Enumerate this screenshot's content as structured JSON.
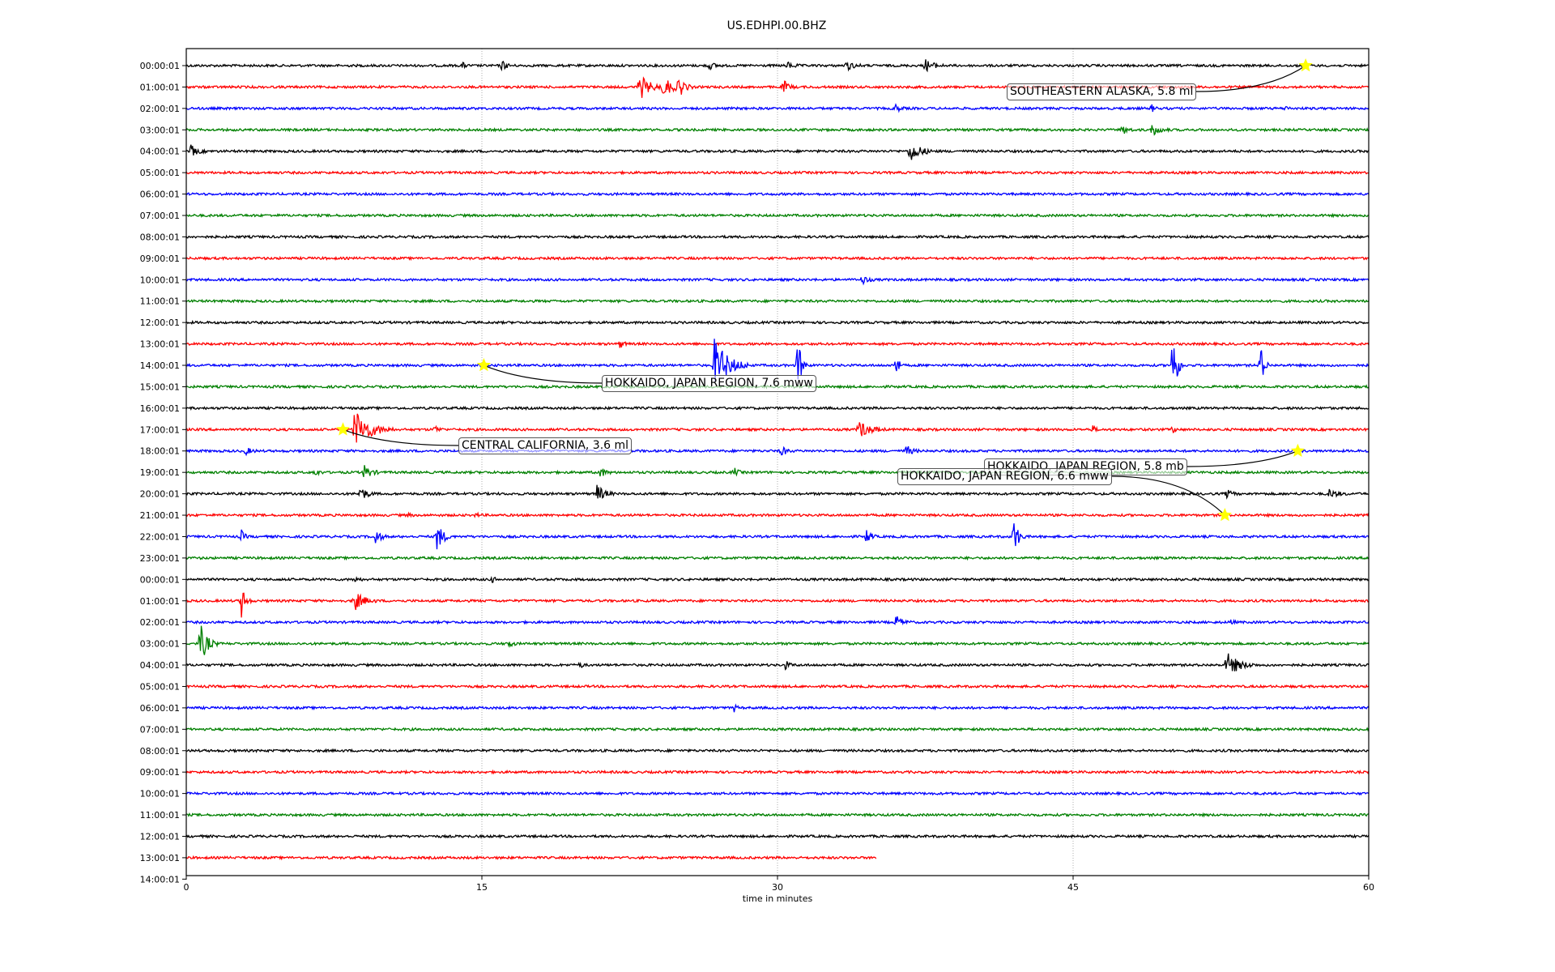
{
  "chart_data": {
    "type": "line",
    "title": "US.EDHPI.00.BHZ",
    "xlabel": "time in minutes",
    "xlim": [
      0,
      60
    ],
    "xticks": [
      "0",
      "15",
      "30",
      "45",
      "60"
    ],
    "xtick_values": [
      0,
      15,
      30,
      45,
      60
    ],
    "grid": "vertical dotted at 15, 30, 45",
    "row_labels": [
      "00:00:01",
      "01:00:01",
      "02:00:01",
      "03:00:01",
      "04:00:01",
      "05:00:01",
      "06:00:01",
      "07:00:01",
      "08:00:01",
      "09:00:01",
      "10:00:01",
      "11:00:01",
      "12:00:01",
      "13:00:01",
      "14:00:01",
      "15:00:01",
      "16:00:01",
      "17:00:01",
      "18:00:01",
      "19:00:01",
      "20:00:01",
      "21:00:01",
      "22:00:01",
      "23:00:01",
      "00:00:01",
      "01:00:01",
      "02:00:01",
      "03:00:01",
      "04:00:01",
      "05:00:01",
      "06:00:01",
      "07:00:01",
      "08:00:01",
      "09:00:01",
      "10:00:01",
      "11:00:01",
      "12:00:01",
      "13:00:01",
      "14:00:01"
    ],
    "colors": [
      "#000000",
      "#ff0000",
      "#0000ff",
      "#008000"
    ],
    "rows_with_data": 38,
    "last_row_end_minute": 35,
    "bursts": [
      [
        0,
        14,
        0.3,
        0.4
      ],
      [
        0,
        16,
        0.5,
        0.6
      ],
      [
        0,
        26.5,
        0.4,
        0.7
      ],
      [
        0,
        30.5,
        0.3,
        0.8
      ],
      [
        0,
        33.5,
        0.5,
        0.8
      ],
      [
        0,
        37.5,
        0.6,
        1.0
      ],
      [
        1,
        23,
        1.2,
        1.3
      ],
      [
        1,
        24.2,
        1.0,
        1.3
      ],
      [
        1,
        25,
        0.8,
        0.8
      ],
      [
        1,
        30.3,
        0.7,
        0.6
      ],
      [
        2,
        36,
        0.4,
        0.5
      ],
      [
        2,
        49,
        0.3,
        0.4
      ],
      [
        2,
        55.8,
        0.2,
        0.3
      ],
      [
        3,
        47.5,
        0.5,
        0.6
      ],
      [
        3,
        49,
        0.6,
        0.9
      ],
      [
        4,
        0.2,
        0.6,
        0.8
      ],
      [
        4,
        36.7,
        1.2,
        1.2
      ],
      [
        10,
        34.3,
        0.5,
        0.6
      ],
      [
        13,
        22,
        0.4,
        0.5
      ],
      [
        14,
        26.8,
        2.5,
        1.8
      ],
      [
        14,
        31,
        3,
        0.5
      ],
      [
        14,
        36,
        2,
        0.3
      ],
      [
        14,
        50,
        4,
        0.6
      ],
      [
        14,
        54.5,
        2,
        0.5
      ],
      [
        17,
        8.5,
        2.0,
        2.0
      ],
      [
        17,
        12.6,
        0.4,
        0.5
      ],
      [
        17,
        34.1,
        0.9,
        1.4
      ],
      [
        17,
        46,
        0.3,
        0.4
      ],
      [
        17,
        50,
        0.3,
        0.5
      ],
      [
        18,
        3,
        0.4,
        0.6
      ],
      [
        18,
        30.2,
        0.5,
        0.6
      ],
      [
        18,
        36.5,
        0.6,
        0.7
      ],
      [
        19,
        6.5,
        0.4,
        0.5
      ],
      [
        19,
        9,
        0.8,
        0.8
      ],
      [
        19,
        21,
        0.5,
        0.6
      ],
      [
        19,
        27.8,
        0.4,
        0.5
      ],
      [
        20,
        8.8,
        0.8,
        0.8
      ],
      [
        20,
        20.8,
        1.0,
        0.9
      ],
      [
        20,
        52.8,
        0.4,
        0.6
      ],
      [
        20,
        58,
        0.4,
        1.0
      ],
      [
        21,
        11.2,
        0.2,
        0.4
      ],
      [
        21,
        14.7,
        0.2,
        0.4
      ],
      [
        22,
        2.8,
        0.6,
        0.4
      ],
      [
        22,
        9.6,
        0.8,
        0.6
      ],
      [
        22,
        12.7,
        1.5,
        0.8
      ],
      [
        22,
        34.5,
        1.0,
        0.5
      ],
      [
        22,
        42,
        1.8,
        0.6
      ],
      [
        24,
        8.5,
        0.3,
        0.5
      ],
      [
        24,
        15.5,
        0.3,
        0.4
      ],
      [
        25,
        2.8,
        1.5,
        0.5
      ],
      [
        25,
        8.5,
        1.0,
        1.2
      ],
      [
        26,
        36,
        0.6,
        0.8
      ],
      [
        26,
        53,
        0.3,
        0.3
      ],
      [
        27,
        0.7,
        2.0,
        0.9
      ],
      [
        27,
        16.3,
        0.5,
        0.5
      ],
      [
        28,
        20,
        0.3,
        0.3
      ],
      [
        28,
        30.4,
        0.4,
        0.5
      ],
      [
        28,
        52.8,
        1.2,
        1.5
      ],
      [
        30,
        27.8,
        0.3,
        0.4
      ]
    ],
    "events": [
      {
        "label": "SOUTHEASTERN ALASKA, 5.8 ml",
        "row": 0,
        "minute": 56.8
      },
      {
        "label": "HOKKAIDO, JAPAN REGION, 7.6 mww",
        "row": 14,
        "minute": 15.1
      },
      {
        "label": "CENTRAL CALIFORNIA, 3.6 ml",
        "row": 17,
        "minute": 7.95
      },
      {
        "label": "HOKKAIDO, JAPAN REGION, 5.8 mb",
        "row": 18,
        "minute": 56.4
      },
      {
        "label": "HOKKAIDO, JAPAN REGION, 6.6 mww",
        "row": 21,
        "minute": 52.7
      }
    ],
    "marker_color": "#ffff00"
  }
}
